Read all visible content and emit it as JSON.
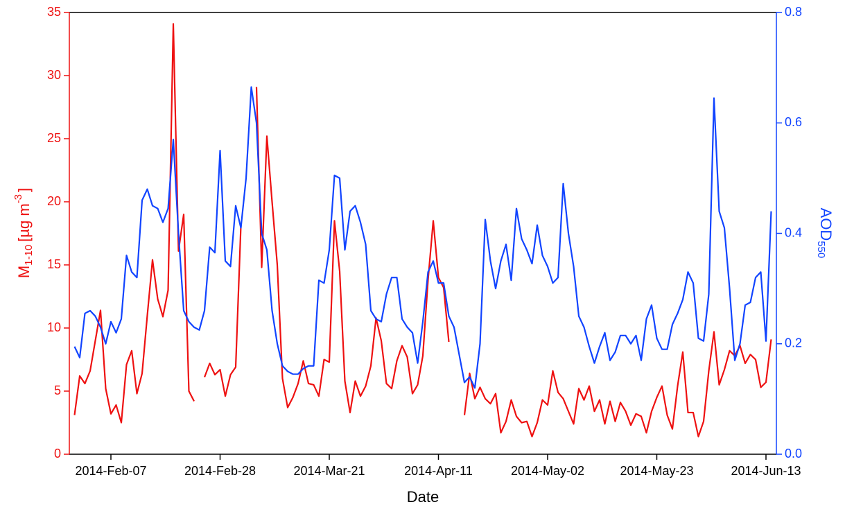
{
  "chart_data": {
    "type": "line",
    "xlabel": "Date",
    "ylabel": {
      "main": "M",
      "sub": "1-10",
      "unit": "[µg m",
      "sup": "-3",
      "end": "]"
    },
    "y2label": {
      "main": "AOD",
      "sub": "550"
    },
    "xlim": [
      "2014-01-30",
      "2014-06-15"
    ],
    "xticks": [
      {
        "value": "2014-02-07",
        "label": "2014-Feb-07"
      },
      {
        "value": "2014-02-28",
        "label": "2014-Feb-28"
      },
      {
        "value": "2014-03-21",
        "label": "2014-Mar-21"
      },
      {
        "value": "2014-04-11",
        "label": "2014-Apr-11"
      },
      {
        "value": "2014-05-02",
        "label": "2014-May-02"
      },
      {
        "value": "2014-05-23",
        "label": "2014-May-23"
      },
      {
        "value": "2014-06-13",
        "label": "2014-Jun-13"
      }
    ],
    "ylim": [
      0,
      35
    ],
    "yticks": [
      0,
      5,
      10,
      15,
      20,
      25,
      30,
      35
    ],
    "y2lim": [
      0,
      0.8
    ],
    "y2ticks": [
      {
        "value": 0,
        "label": "0.0"
      },
      0.2,
      0.4,
      0.6,
      0.8
    ],
    "yaxis_color": "#ee1111",
    "y2axis_color": "#1144ff",
    "x": [
      "2014-01-31",
      "2014-02-01",
      "2014-02-02",
      "2014-02-03",
      "2014-02-04",
      "2014-02-05",
      "2014-02-06",
      "2014-02-07",
      "2014-02-08",
      "2014-02-09",
      "2014-02-10",
      "2014-02-11",
      "2014-02-12",
      "2014-02-13",
      "2014-02-14",
      "2014-02-15",
      "2014-02-16",
      "2014-02-17",
      "2014-02-18",
      "2014-02-19",
      "2014-02-20",
      "2014-02-21",
      "2014-02-22",
      "2014-02-23",
      "2014-02-24",
      "2014-02-25",
      "2014-02-26",
      "2014-02-27",
      "2014-02-28",
      "2014-03-01",
      "2014-03-02",
      "2014-03-03",
      "2014-03-04",
      "2014-03-05",
      "2014-03-06",
      "2014-03-07",
      "2014-03-08",
      "2014-03-09",
      "2014-03-10",
      "2014-03-11",
      "2014-03-12",
      "2014-03-13",
      "2014-03-14",
      "2014-03-15",
      "2014-03-16",
      "2014-03-17",
      "2014-03-18",
      "2014-03-19",
      "2014-03-20",
      "2014-03-21",
      "2014-03-22",
      "2014-03-23",
      "2014-03-24",
      "2014-03-25",
      "2014-03-26",
      "2014-03-27",
      "2014-03-28",
      "2014-03-29",
      "2014-03-30",
      "2014-03-31",
      "2014-04-01",
      "2014-04-02",
      "2014-04-03",
      "2014-04-04",
      "2014-04-05",
      "2014-04-06",
      "2014-04-07",
      "2014-04-08",
      "2014-04-09",
      "2014-04-10",
      "2014-04-11",
      "2014-04-12",
      "2014-04-13",
      "2014-04-14",
      "2014-04-15",
      "2014-04-16",
      "2014-04-17",
      "2014-04-18",
      "2014-04-19",
      "2014-04-20",
      "2014-04-21",
      "2014-04-22",
      "2014-04-23",
      "2014-04-24",
      "2014-04-25",
      "2014-04-26",
      "2014-04-27",
      "2014-04-28",
      "2014-04-29",
      "2014-04-30",
      "2014-05-01",
      "2014-05-02",
      "2014-05-03",
      "2014-05-04",
      "2014-05-05",
      "2014-05-06",
      "2014-05-07",
      "2014-05-08",
      "2014-05-09",
      "2014-05-10",
      "2014-05-11",
      "2014-05-12",
      "2014-05-13",
      "2014-05-14",
      "2014-05-15",
      "2014-05-16",
      "2014-05-17",
      "2014-05-18",
      "2014-05-19",
      "2014-05-20",
      "2014-05-21",
      "2014-05-22",
      "2014-05-23",
      "2014-05-24",
      "2014-05-25",
      "2014-05-26",
      "2014-05-27",
      "2014-05-28",
      "2014-05-29",
      "2014-05-30",
      "2014-05-31",
      "2014-06-01",
      "2014-06-02",
      "2014-06-03",
      "2014-06-04",
      "2014-06-05",
      "2014-06-06",
      "2014-06-07",
      "2014-06-08",
      "2014-06-09",
      "2014-06-10",
      "2014-06-11",
      "2014-06-12",
      "2014-06-13",
      "2014-06-14"
    ],
    "series": [
      {
        "color": "#ee1111",
        "values": [
          3.1,
          6.2,
          5.6,
          6.6,
          9.0,
          11.4,
          5.2,
          3.2,
          3.9,
          2.5,
          7.1,
          8.2,
          4.8,
          6.4,
          11.0,
          15.4,
          12.3,
          10.9,
          13.0,
          34.1,
          16.1,
          19.0,
          5.0,
          4.2,
          null,
          6.1,
          7.2,
          6.3,
          6.7,
          4.6,
          6.3,
          6.9,
          18.1,
          null,
          null,
          29.1,
          14.8,
          25.2,
          20.0,
          15.0,
          6.0,
          3.7,
          4.5,
          5.6,
          7.4,
          5.6,
          5.5,
          4.6,
          7.5,
          7.3,
          18.5,
          14.5,
          5.8,
          3.3,
          5.8,
          4.6,
          5.4,
          7.0,
          10.8,
          9.0,
          5.6,
          5.2,
          7.4,
          8.6,
          7.7,
          4.8,
          5.5,
          7.8,
          13.8,
          18.5,
          14.0,
          13.2,
          8.9,
          null,
          null,
          3.1,
          6.4,
          4.4,
          5.3,
          4.4,
          4.0,
          4.8,
          1.7,
          2.6,
          4.3,
          3.0,
          2.5,
          2.6,
          1.4,
          2.5,
          4.3,
          3.9,
          6.6,
          4.9,
          4.4,
          3.4,
          2.4,
          5.2,
          4.3,
          5.4,
          3.4,
          4.3,
          2.4,
          4.2,
          2.6,
          4.1,
          3.4,
          2.3,
          3.2,
          3.0,
          1.7,
          3.4,
          4.5,
          5.4,
          3.1,
          2.0,
          5.4,
          8.1,
          3.3,
          3.3,
          1.4,
          2.6,
          6.6,
          9.7,
          5.5,
          6.7,
          8.2,
          7.8,
          8.6,
          7.2,
          7.9,
          7.5,
          5.3,
          5.7,
          9.1
        ]
      },
      {
        "color": "#1144ff",
        "axis": "y2",
        "values": [
          0.195,
          0.175,
          0.255,
          0.26,
          0.25,
          0.23,
          0.2,
          0.24,
          0.22,
          0.245,
          0.36,
          0.33,
          0.32,
          0.46,
          0.48,
          0.45,
          0.445,
          0.42,
          0.445,
          0.57,
          0.4,
          0.26,
          0.24,
          0.23,
          0.225,
          0.26,
          0.375,
          0.365,
          0.55,
          0.35,
          0.34,
          0.45,
          0.41,
          0.5,
          0.665,
          0.6,
          0.4,
          0.37,
          0.26,
          0.2,
          0.16,
          0.15,
          0.145,
          0.145,
          0.155,
          0.16,
          0.16,
          0.315,
          0.31,
          0.37,
          0.505,
          0.5,
          0.37,
          0.44,
          0.45,
          0.42,
          0.38,
          0.26,
          0.245,
          0.24,
          0.29,
          0.32,
          0.32,
          0.245,
          0.23,
          0.22,
          0.165,
          0.24,
          0.33,
          0.35,
          0.31,
          0.31,
          0.25,
          0.23,
          0.18,
          0.13,
          0.14,
          0.12,
          0.2,
          0.425,
          0.35,
          0.3,
          0.35,
          0.38,
          0.315,
          0.445,
          0.39,
          0.37,
          0.345,
          0.415,
          0.36,
          0.34,
          0.31,
          0.32,
          0.49,
          0.4,
          0.34,
          0.25,
          0.23,
          0.195,
          0.165,
          0.195,
          0.22,
          0.17,
          0.185,
          0.215,
          0.215,
          0.2,
          0.215,
          0.17,
          0.245,
          0.27,
          0.21,
          0.19,
          0.19,
          0.235,
          0.255,
          0.28,
          0.33,
          0.31,
          0.21,
          0.205,
          0.29,
          0.645,
          0.44,
          0.41,
          0.3,
          0.17,
          0.2,
          0.27,
          0.275,
          0.32,
          0.33,
          0.205,
          0.44
        ]
      }
    ]
  }
}
